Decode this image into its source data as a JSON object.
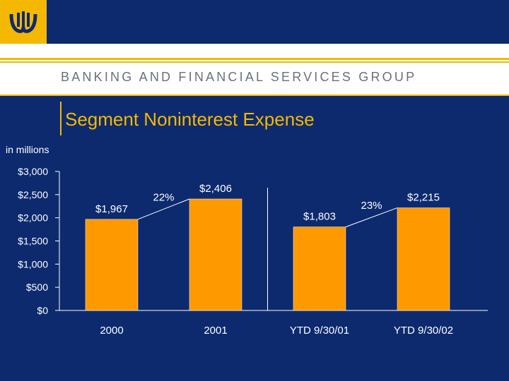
{
  "header": {
    "group_name": "BANKING AND FINANCIAL SERVICES GROUP"
  },
  "slide": {
    "title": "Segment Noninterest Expense",
    "units_label": "in millions"
  },
  "colors": {
    "background": "#0d2a6e",
    "accent": "#f5b800",
    "bar": "#ff9900",
    "text": "#ffffff"
  },
  "chart_data": {
    "type": "bar",
    "categories": [
      "2000",
      "2001",
      "YTD 9/30/01",
      "YTD 9/30/02"
    ],
    "values": [
      1967,
      2406,
      1803,
      2215
    ],
    "data_labels": [
      "$1,967",
      "$2,406",
      "$1,803",
      "$2,215"
    ],
    "ylim": [
      0,
      3000
    ],
    "yticks": [
      0,
      500,
      1000,
      1500,
      2000,
      2500,
      3000
    ],
    "ytick_labels": [
      "$0",
      "$500",
      "$1,000",
      "$1,500",
      "$2,000",
      "$2,500",
      "$3,000"
    ],
    "growth_annotations": [
      {
        "from": 0,
        "to": 1,
        "label": "22%"
      },
      {
        "from": 2,
        "to": 3,
        "label": "23%"
      }
    ],
    "grid": false
  }
}
